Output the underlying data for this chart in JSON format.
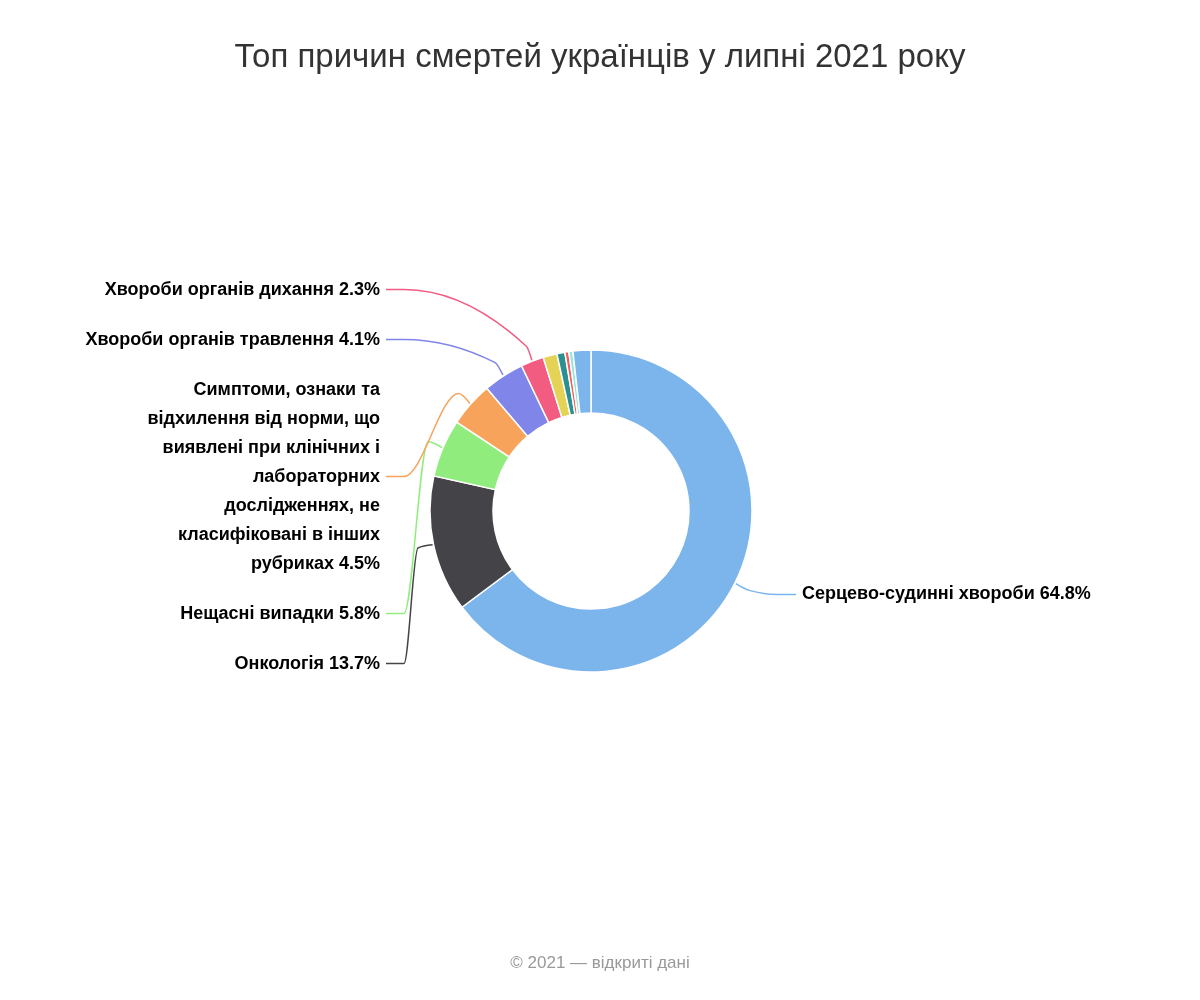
{
  "chart_data": {
    "type": "donut",
    "title": "Топ причин смертей українців у липні 2021 року",
    "categories": [
      "Серцево-судинні хвороби",
      "Онкологія",
      "Нещасні випадки",
      "Симптоми, ознаки та відхилення від норми, що виявлені при клінічних і лабораторних дослідженнях, не класифіковані в інших рубриках",
      "Хвороби органів травлення",
      "Хвороби органів дихання",
      null,
      null,
      null,
      null,
      null
    ],
    "values": [
      64.8,
      13.7,
      5.8,
      4.5,
      4.1,
      2.3,
      1.4,
      0.8,
      0.4,
      0.4,
      1.8
    ],
    "colors": [
      "#7cb5ec",
      "#434348",
      "#90ed7d",
      "#f7a35c",
      "#8085e9",
      "#f15c80",
      "#e4d354",
      "#2b908f",
      "#f45b5b",
      "#91e8e1",
      "#7cb5ec"
    ],
    "value_labels": [
      "64.8%",
      "13.7%",
      "5.8%",
      "4.5%",
      "4.1%",
      "2.3%",
      null,
      null,
      null,
      null,
      null
    ],
    "annotations": [
      "© 2021 — відкриті дані"
    ]
  }
}
